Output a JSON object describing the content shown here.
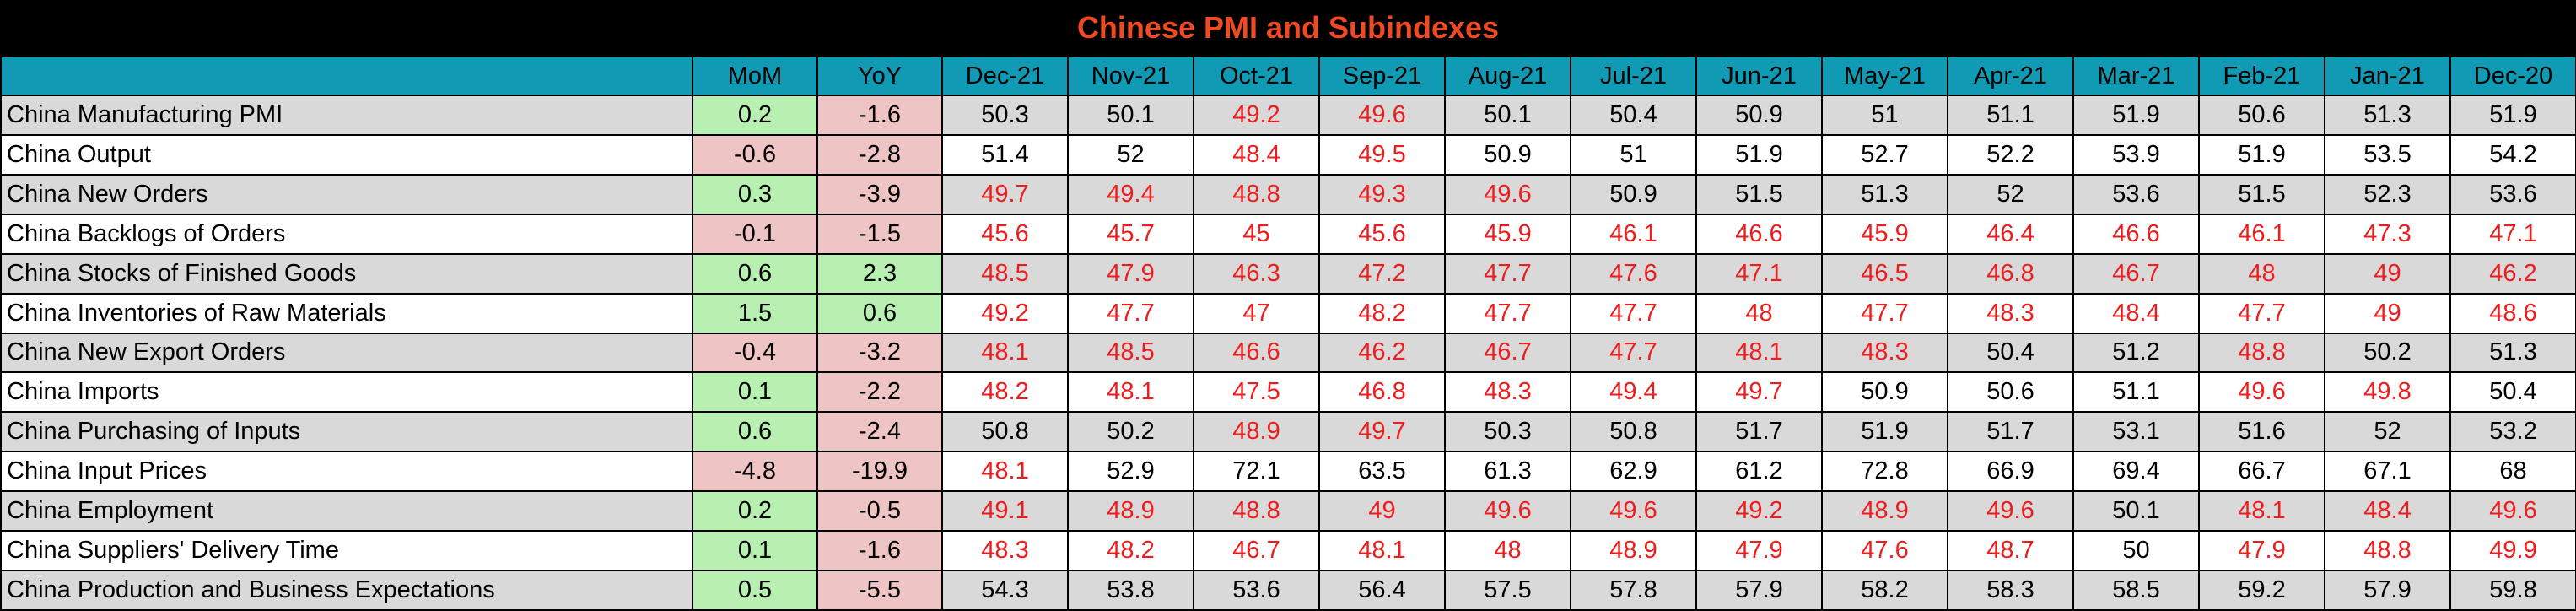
{
  "title": "Chinese PMI and Subindexes",
  "colors": {
    "title": "#ef4a24",
    "header_bg": "#119ab3",
    "positive_bg": "#b7f0b1",
    "negative_bg": "#efc4c4",
    "below_50_text": "#ee1c1c"
  },
  "chart_data": {
    "type": "table",
    "title": "Chinese PMI and Subindexes",
    "columns": [
      "",
      "MoM",
      "YoY",
      "Dec-21",
      "Nov-21",
      "Oct-21",
      "Sep-21",
      "Aug-21",
      "Jul-21",
      "Jun-21",
      "May-21",
      "Apr-21",
      "Mar-21",
      "Feb-21",
      "Jan-21",
      "Dec-20"
    ],
    "rows": [
      {
        "name": "China Manufacturing PMI",
        "mom": "0.2",
        "yoy": "-1.6",
        "values": [
          "50.3",
          "50.1",
          "49.2",
          "49.6",
          "50.1",
          "50.4",
          "50.9",
          "51",
          "51.1",
          "51.9",
          "50.6",
          "51.3",
          "51.9"
        ]
      },
      {
        "name": "China Output",
        "mom": "-0.6",
        "yoy": "-2.8",
        "values": [
          "51.4",
          "52",
          "48.4",
          "49.5",
          "50.9",
          "51",
          "51.9",
          "52.7",
          "52.2",
          "53.9",
          "51.9",
          "53.5",
          "54.2"
        ]
      },
      {
        "name": "China New Orders",
        "mom": "0.3",
        "yoy": "-3.9",
        "values": [
          "49.7",
          "49.4",
          "48.8",
          "49.3",
          "49.6",
          "50.9",
          "51.5",
          "51.3",
          "52",
          "53.6",
          "51.5",
          "52.3",
          "53.6"
        ]
      },
      {
        "name": "China Backlogs of Orders",
        "mom": "-0.1",
        "yoy": "-1.5",
        "values": [
          "45.6",
          "45.7",
          "45",
          "45.6",
          "45.9",
          "46.1",
          "46.6",
          "45.9",
          "46.4",
          "46.6",
          "46.1",
          "47.3",
          "47.1"
        ]
      },
      {
        "name": "China Stocks of Finished Goods",
        "mom": "0.6",
        "yoy": "2.3",
        "values": [
          "48.5",
          "47.9",
          "46.3",
          "47.2",
          "47.7",
          "47.6",
          "47.1",
          "46.5",
          "46.8",
          "46.7",
          "48",
          "49",
          "46.2"
        ]
      },
      {
        "name": "China Inventories of Raw Materials",
        "mom": "1.5",
        "yoy": "0.6",
        "values": [
          "49.2",
          "47.7",
          "47",
          "48.2",
          "47.7",
          "47.7",
          "48",
          "47.7",
          "48.3",
          "48.4",
          "47.7",
          "49",
          "48.6"
        ]
      },
      {
        "name": "China New Export Orders",
        "mom": "-0.4",
        "yoy": "-3.2",
        "values": [
          "48.1",
          "48.5",
          "46.6",
          "46.2",
          "46.7",
          "47.7",
          "48.1",
          "48.3",
          "50.4",
          "51.2",
          "48.8",
          "50.2",
          "51.3"
        ]
      },
      {
        "name": "China Imports",
        "mom": "0.1",
        "yoy": "-2.2",
        "values": [
          "48.2",
          "48.1",
          "47.5",
          "46.8",
          "48.3",
          "49.4",
          "49.7",
          "50.9",
          "50.6",
          "51.1",
          "49.6",
          "49.8",
          "50.4"
        ]
      },
      {
        "name": "China Purchasing of Inputs",
        "mom": "0.6",
        "yoy": "-2.4",
        "values": [
          "50.8",
          "50.2",
          "48.9",
          "49.7",
          "50.3",
          "50.8",
          "51.7",
          "51.9",
          "51.7",
          "53.1",
          "51.6",
          "52",
          "53.2"
        ]
      },
      {
        "name": "China Input Prices",
        "mom": "-4.8",
        "yoy": "-19.9",
        "values": [
          "48.1",
          "52.9",
          "72.1",
          "63.5",
          "61.3",
          "62.9",
          "61.2",
          "72.8",
          "66.9",
          "69.4",
          "66.7",
          "67.1",
          "68"
        ]
      },
      {
        "name": "China Employment",
        "mom": "0.2",
        "yoy": "-0.5",
        "values": [
          "49.1",
          "48.9",
          "48.8",
          "49",
          "49.6",
          "49.6",
          "49.2",
          "48.9",
          "49.6",
          "50.1",
          "48.1",
          "48.4",
          "49.6"
        ]
      },
      {
        "name": "China Suppliers' Delivery Time",
        "mom": "0.1",
        "yoy": "-1.6",
        "values": [
          "48.3",
          "48.2",
          "46.7",
          "48.1",
          "48",
          "48.9",
          "47.9",
          "47.6",
          "48.7",
          "50",
          "47.9",
          "48.8",
          "49.9"
        ]
      },
      {
        "name": "China Production and Business Expectations",
        "mom": "0.5",
        "yoy": "-5.5",
        "values": [
          "54.3",
          "53.8",
          "53.6",
          "56.4",
          "57.5",
          "57.8",
          "57.9",
          "58.2",
          "58.3",
          "58.5",
          "59.2",
          "57.9",
          "59.8"
        ]
      }
    ]
  }
}
